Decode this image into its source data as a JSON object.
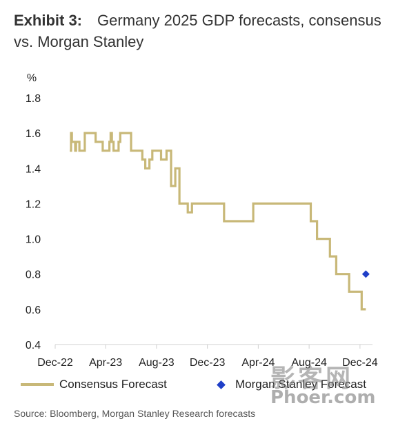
{
  "title": {
    "label": "Exhibit 3:",
    "text": "Germany 2025 GDP forecasts, consensus vs. Morgan Stanley"
  },
  "source": "Source: Bloomberg, Morgan Stanley Research forecasts",
  "watermark": {
    "chinese": "影客网",
    "latin": "Phoer.com"
  },
  "colors": {
    "consensus": "#c8b878",
    "morgan_stanley": "#1f3fc8",
    "axis": "#d0d0d0"
  },
  "chart_data": {
    "type": "line",
    "ylabel": "%",
    "ylim": [
      0.4,
      1.8
    ],
    "yticks": [
      1.8,
      1.6,
      1.4,
      1.2,
      1.0,
      0.8,
      0.6,
      0.4
    ],
    "yticklabels": [
      "1.8",
      "1.6",
      "1.4",
      "1.2",
      "1.0",
      "0.8",
      "0.6",
      "0.4"
    ],
    "xlim": [
      "2022-12-01",
      "2024-12-31"
    ],
    "xticks": [
      "2022-12-01",
      "2023-04-01",
      "2023-08-01",
      "2023-12-01",
      "2024-04-01",
      "2024-08-01",
      "2024-12-01"
    ],
    "xticklabels": [
      "Dec-22",
      "Apr-23",
      "Aug-23",
      "Dec-23",
      "Apr-24",
      "Aug-24",
      "Dec-24"
    ],
    "grid": false,
    "legend": "bottom",
    "series": [
      {
        "name": "Consensus Forecast",
        "style": "step-line",
        "x": [
          "2023-01-05",
          "2023-01-08",
          "2023-01-10",
          "2023-01-18",
          "2023-01-20",
          "2023-01-28",
          "2023-02-02",
          "2023-02-10",
          "2023-02-15",
          "2023-02-25",
          "2023-03-08",
          "2023-03-15",
          "2023-03-25",
          "2023-04-02",
          "2023-04-10",
          "2023-04-13",
          "2023-04-16",
          "2023-04-20",
          "2023-04-28",
          "2023-05-02",
          "2023-05-06",
          "2023-05-12",
          "2023-05-15",
          "2023-05-25",
          "2023-06-01",
          "2023-06-15",
          "2023-06-28",
          "2023-07-05",
          "2023-07-15",
          "2023-07-22",
          "2023-08-05",
          "2023-08-12",
          "2023-08-25",
          "2023-09-05",
          "2023-09-15",
          "2023-09-25",
          "2023-10-05",
          "2023-10-15",
          "2023-10-25",
          "2023-11-05",
          "2023-11-08",
          "2023-11-10",
          "2023-11-15",
          "2023-11-18",
          "2023-11-20",
          "2023-11-22",
          "2023-11-24",
          "2023-12-05",
          "2023-12-10",
          "2023-12-20",
          "2023-12-25",
          "2024-01-10",
          "2024-01-25",
          "2024-02-10",
          "2024-02-20",
          "2024-03-05",
          "2024-03-20",
          "2024-04-05",
          "2024-04-20",
          "2024-05-01",
          "2024-05-20",
          "2024-06-10",
          "2024-06-25",
          "2024-07-10",
          "2024-07-25",
          "2024-08-05",
          "2024-08-20",
          "2024-08-25",
          "2024-09-05",
          "2024-09-20",
          "2024-10-05",
          "2024-10-10",
          "2024-10-20",
          "2024-11-05",
          "2024-11-20",
          "2024-12-05",
          "2024-12-15"
        ],
        "values": [
          1.5,
          1.6,
          1.55,
          1.5,
          1.55,
          1.5,
          1.5,
          1.6,
          1.6,
          1.6,
          1.55,
          1.55,
          1.5,
          1.5,
          1.55,
          1.6,
          1.55,
          1.5,
          1.5,
          1.55,
          1.6,
          1.6,
          1.6,
          1.6,
          1.5,
          1.5,
          1.45,
          1.4,
          1.45,
          1.5,
          1.5,
          1.45,
          1.5,
          1.3,
          1.4,
          1.2,
          1.2,
          1.15,
          1.2,
          1.2,
          1.2,
          1.2,
          1.2,
          1.2,
          1.2,
          1.2,
          1.2,
          1.2,
          1.2,
          1.2,
          1.2,
          1.1,
          1.1,
          1.1,
          1.1,
          1.1,
          1.2,
          1.2,
          1.2,
          1.2,
          1.2,
          1.2,
          1.2,
          1.2,
          1.2,
          1.1,
          1.0,
          1.0,
          1.0,
          0.9,
          0.8,
          0.8,
          0.8,
          0.7,
          0.7,
          0.6,
          0.6
        ]
      },
      {
        "name": "Morgan Stanley Forecast",
        "style": "marker-diamond",
        "x": [
          "2024-12-15"
        ],
        "values": [
          0.8
        ]
      }
    ]
  }
}
